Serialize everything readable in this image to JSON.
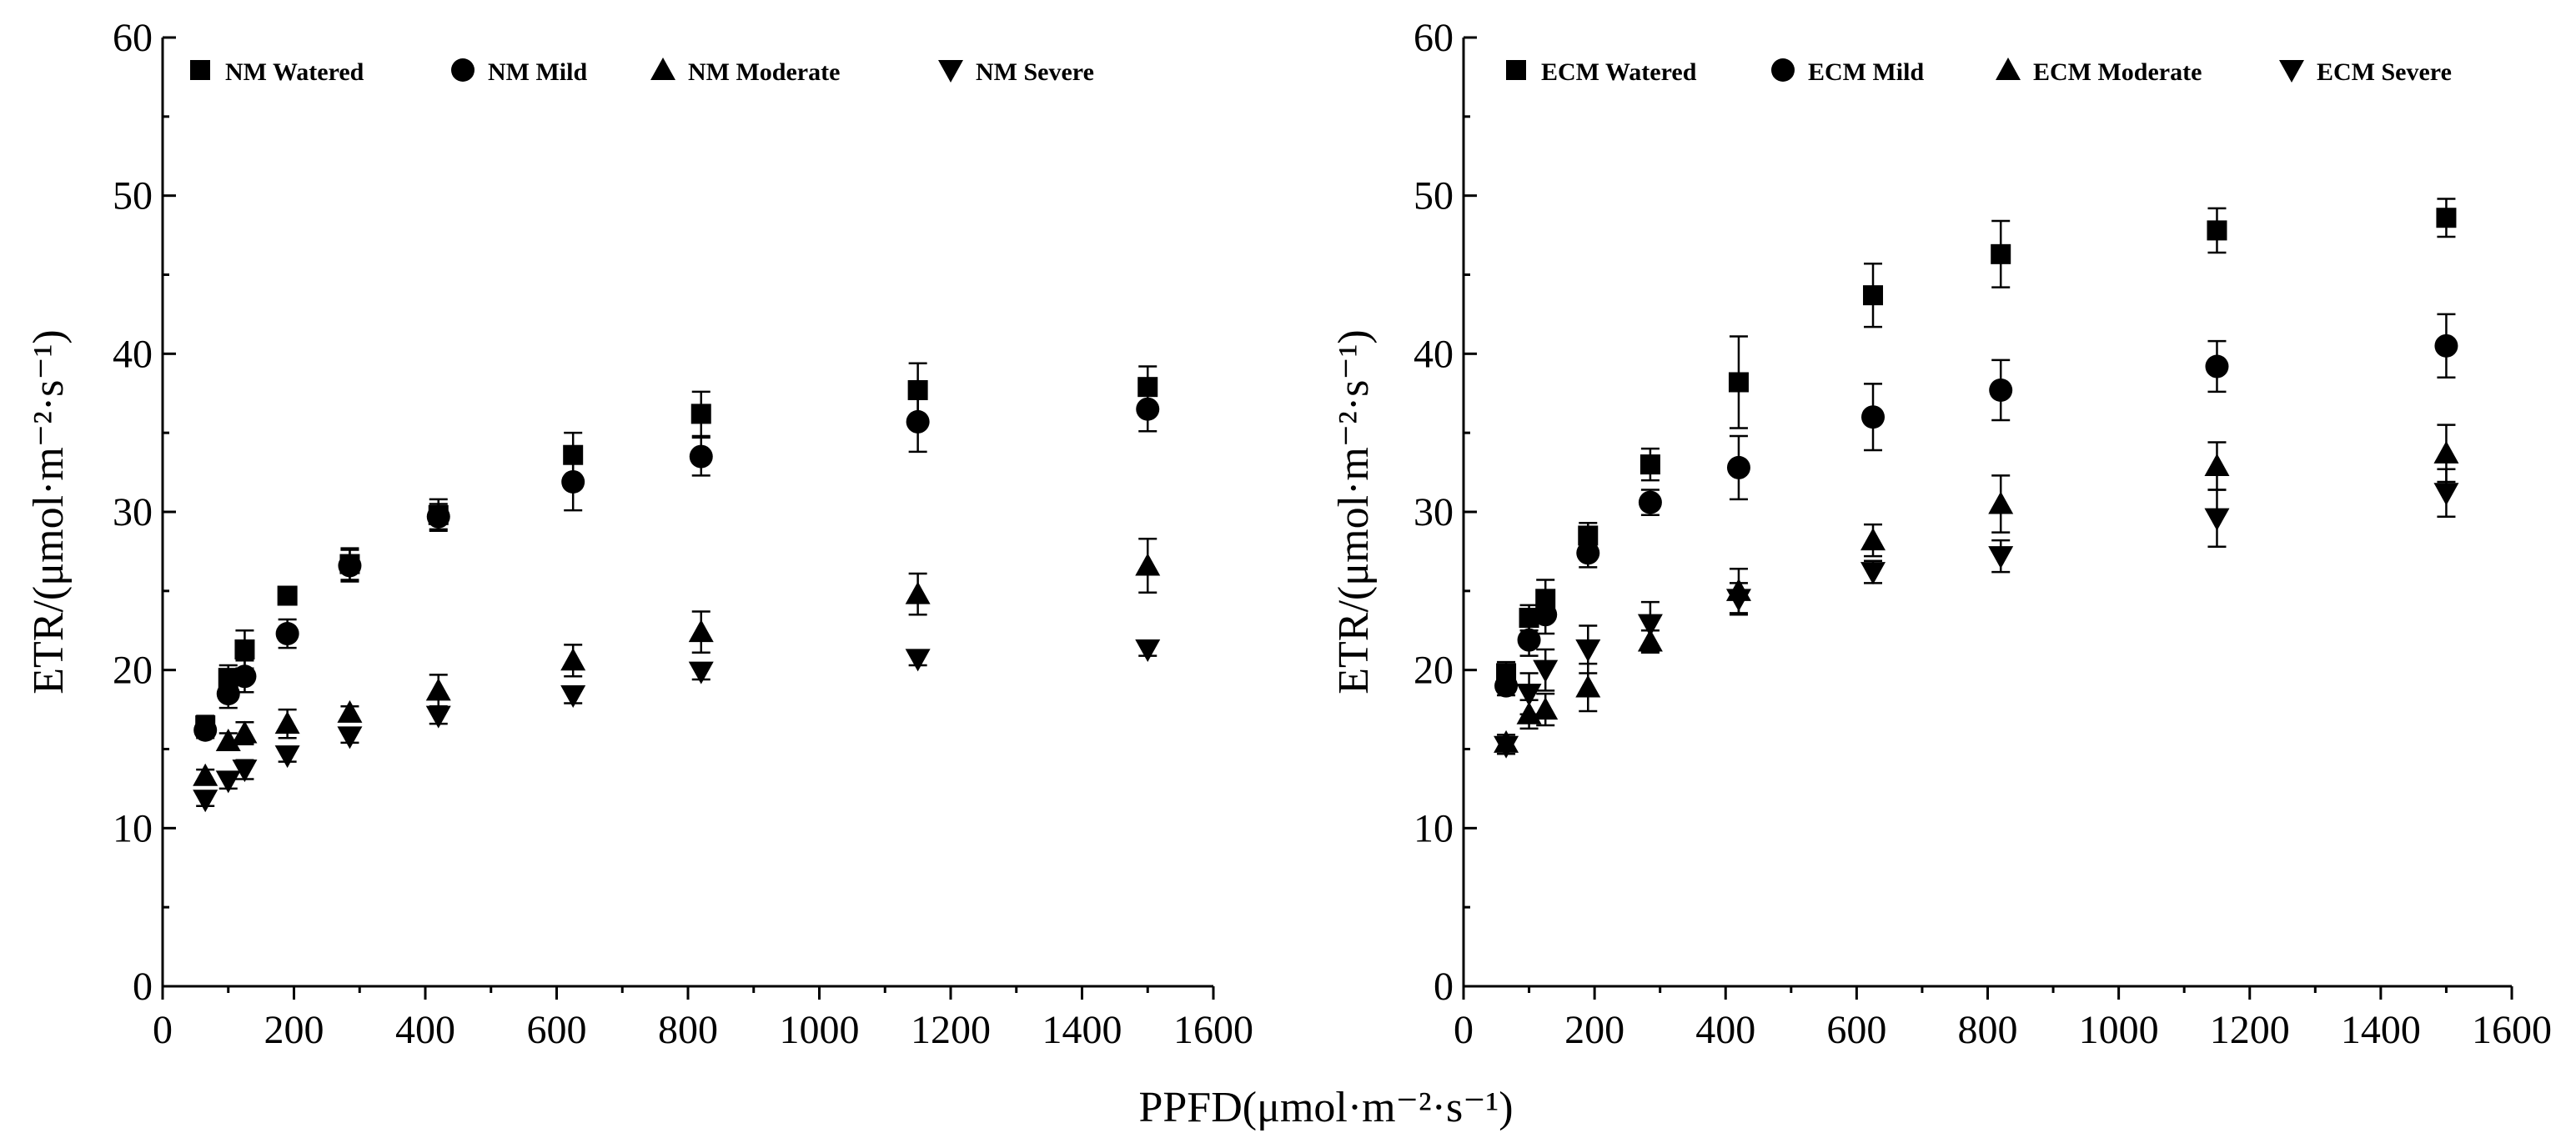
{
  "shared_xlabel": "PPFD(μmol·m⁻²·s⁻¹)",
  "chart_data": [
    {
      "type": "scatter",
      "id": "nm",
      "xlabel": "",
      "ylabel": "ETR/(μmol·m⁻²·s⁻¹)",
      "xlim": [
        0,
        1600
      ],
      "ylim": [
        0,
        60
      ],
      "xticks": [
        0,
        200,
        400,
        600,
        800,
        1000,
        1200,
        1400,
        1600
      ],
      "yticks": [
        0,
        10,
        20,
        30,
        40,
        50,
        60
      ],
      "x": [
        65,
        100,
        125,
        190,
        285,
        420,
        625,
        820,
        1150,
        1500
      ],
      "legend_position": "top",
      "series": [
        {
          "name": "NM Watered",
          "marker": "square",
          "values": [
            16.5,
            19.5,
            21.3,
            24.7,
            26.7,
            29.8,
            33.6,
            36.2,
            37.7,
            37.9
          ],
          "errors": [
            0.6,
            0.8,
            1.2,
            0.5,
            1.0,
            1.0,
            1.4,
            1.4,
            1.7,
            1.3
          ]
        },
        {
          "name": "NM Mild",
          "marker": "circle",
          "values": [
            16.2,
            18.5,
            19.6,
            22.3,
            26.6,
            29.7,
            31.9,
            33.5,
            35.7,
            36.5
          ],
          "errors": [
            0.5,
            0.9,
            1.0,
            0.9,
            1.0,
            0.8,
            1.8,
            1.2,
            1.9,
            1.4
          ]
        },
        {
          "name": "NM Moderate",
          "marker": "triangle-up",
          "values": [
            13.3,
            15.5,
            16.0,
            16.6,
            17.3,
            18.7,
            20.6,
            22.4,
            24.8,
            26.6
          ],
          "errors": [
            0.4,
            0.5,
            0.7,
            0.9,
            0.4,
            1.0,
            1.0,
            1.3,
            1.3,
            1.7
          ]
        },
        {
          "name": "NM Severe",
          "marker": "triangle-down",
          "values": [
            11.8,
            13.0,
            13.7,
            14.6,
            15.8,
            17.1,
            18.4,
            19.9,
            20.7,
            21.3
          ],
          "errors": [
            0.4,
            0.5,
            0.6,
            0.4,
            0.4,
            0.5,
            0.5,
            0.5,
            0.4,
            0.4
          ]
        }
      ]
    },
    {
      "type": "scatter",
      "id": "ecm",
      "xlabel": "",
      "ylabel": "ETR/(μmol·m⁻²·s⁻¹)",
      "xlim": [
        0,
        1600
      ],
      "ylim": [
        0,
        60
      ],
      "xticks": [
        0,
        200,
        400,
        600,
        800,
        1000,
        1200,
        1400,
        1600
      ],
      "yticks": [
        0,
        10,
        20,
        30,
        40,
        50,
        60
      ],
      "x": [
        65,
        100,
        125,
        190,
        285,
        420,
        625,
        820,
        1150,
        1500
      ],
      "legend_position": "top",
      "series": [
        {
          "name": "ECM Watered",
          "marker": "square",
          "values": [
            19.8,
            23.3,
            24.5,
            28.5,
            33.0,
            38.2,
            43.7,
            46.3,
            47.8,
            48.6
          ],
          "errors": [
            0.7,
            0.8,
            1.2,
            0.8,
            1.0,
            2.9,
            2.0,
            2.1,
            1.4,
            1.2
          ]
        },
        {
          "name": "ECM Mild",
          "marker": "circle",
          "values": [
            19.0,
            21.9,
            23.5,
            27.4,
            30.6,
            32.8,
            36.0,
            37.7,
            39.2,
            40.5
          ],
          "errors": [
            0.6,
            1.0,
            1.2,
            0.9,
            0.8,
            2.0,
            2.1,
            1.9,
            1.6,
            2.0
          ]
        },
        {
          "name": "ECM Moderate",
          "marker": "triangle-up",
          "values": [
            15.4,
            17.2,
            17.5,
            18.9,
            21.8,
            25.0,
            28.2,
            30.5,
            32.9,
            33.7
          ],
          "errors": [
            0.5,
            0.9,
            1.0,
            1.5,
            0.7,
            1.4,
            1.0,
            1.8,
            1.5,
            1.8
          ]
        },
        {
          "name": "ECM Severe",
          "marker": "triangle-down",
          "values": [
            15.2,
            18.5,
            20.0,
            21.3,
            22.9,
            24.5,
            26.2,
            27.2,
            29.6,
            31.2
          ],
          "errors": [
            0.5,
            1.3,
            1.3,
            1.5,
            1.4,
            1.0,
            0.7,
            1.0,
            1.8,
            1.5
          ]
        }
      ]
    }
  ]
}
